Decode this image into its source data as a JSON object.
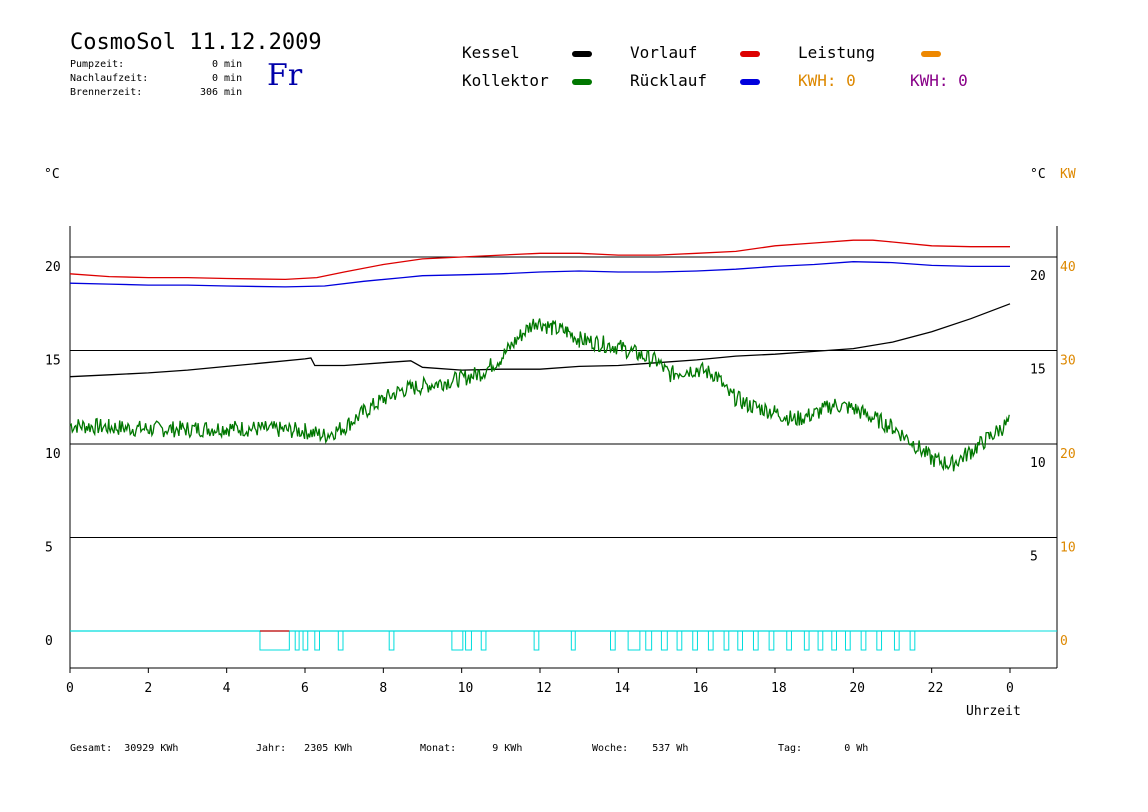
{
  "header": {
    "title": "CosmoSol 11.12.2009",
    "day": "Fr",
    "stats": [
      {
        "label": "Pumpzeit:",
        "value": "0",
        "unit": "min"
      },
      {
        "label": "Nachlaufzeit:",
        "value": "0",
        "unit": "min"
      },
      {
        "label": "Brennerzeit:",
        "value": "306",
        "unit": "min"
      }
    ]
  },
  "legend": {
    "kessel": {
      "label": "Kessel",
      "color": "#000000"
    },
    "vorlauf": {
      "label": "Vorlauf",
      "color": "#dd0000"
    },
    "leistung": {
      "label": "Leistung",
      "color": "#ee8800"
    },
    "kollektor": {
      "label": "Kollektor",
      "color": "#007700"
    },
    "ruecklauf": {
      "label": "Rücklauf",
      "color": "#0000dd"
    },
    "kwh1": {
      "label": "KWH: 0",
      "color": "#dd8800"
    },
    "kwh2": {
      "label": "KWH: 0",
      "color": "#880088"
    }
  },
  "footer": {
    "gesamt": {
      "label": "Gesamt:",
      "value": "30929 KWh"
    },
    "jahr": {
      "label": "Jahr:",
      "value": "2305 KWh"
    },
    "monat": {
      "label": "Monat:",
      "value": "9 KWh"
    },
    "woche": {
      "label": "Woche:",
      "value": "537 Wh"
    },
    "tag": {
      "label": "Tag:",
      "value": "0 Wh"
    }
  },
  "chart_data": {
    "type": "line",
    "xlabel": "Uhrzeit",
    "ylabel_left": "°C",
    "ylabel_right": "°C",
    "ylabel_right_kw": "KW",
    "x_ticks": [
      "0",
      "2",
      "4",
      "6",
      "8",
      "10",
      "12",
      "14",
      "16",
      "18",
      "20",
      "22",
      "0"
    ],
    "y_ticks_left": [
      "0",
      "5",
      "10",
      "15",
      "20"
    ],
    "y_ticks_right_c": [
      "5",
      "10",
      "15",
      "20"
    ],
    "y_ticks_right_kw": [
      "0",
      "10",
      "20",
      "30",
      "40"
    ],
    "xlim": [
      0,
      24
    ],
    "ylim": [
      -2,
      22
    ],
    "grid": "horizontal",
    "series": [
      {
        "name": "Vorlauf",
        "color": "#dd0000",
        "points": [
          [
            0,
            19.1
          ],
          [
            1,
            18.95
          ],
          [
            2,
            18.9
          ],
          [
            3,
            18.9
          ],
          [
            4,
            18.85
          ],
          [
            5.5,
            18.8
          ],
          [
            6.3,
            18.9
          ],
          [
            7,
            19.2
          ],
          [
            8,
            19.6
          ],
          [
            9,
            19.9
          ],
          [
            10,
            20.0
          ],
          [
            11,
            20.1
          ],
          [
            12,
            20.2
          ],
          [
            13,
            20.2
          ],
          [
            14,
            20.1
          ],
          [
            15,
            20.1
          ],
          [
            16,
            20.2
          ],
          [
            17,
            20.3
          ],
          [
            18,
            20.6
          ],
          [
            19,
            20.75
          ],
          [
            20,
            20.9
          ],
          [
            20.5,
            20.9
          ],
          [
            21,
            20.8
          ],
          [
            22,
            20.6
          ],
          [
            23,
            20.55
          ],
          [
            24,
            20.55
          ]
        ]
      },
      {
        "name": "Rücklauf",
        "color": "#0000dd",
        "points": [
          [
            0,
            18.6
          ],
          [
            1,
            18.55
          ],
          [
            2,
            18.5
          ],
          [
            3,
            18.5
          ],
          [
            4,
            18.45
          ],
          [
            5.5,
            18.4
          ],
          [
            6.5,
            18.45
          ],
          [
            7.5,
            18.7
          ],
          [
            8.5,
            18.9
          ],
          [
            9,
            19.0
          ],
          [
            10,
            19.05
          ],
          [
            11,
            19.1
          ],
          [
            12,
            19.2
          ],
          [
            13,
            19.25
          ],
          [
            14,
            19.2
          ],
          [
            15,
            19.2
          ],
          [
            16,
            19.25
          ],
          [
            17,
            19.35
          ],
          [
            18,
            19.5
          ],
          [
            19,
            19.6
          ],
          [
            20,
            19.75
          ],
          [
            21,
            19.7
          ],
          [
            22,
            19.55
          ],
          [
            23,
            19.5
          ],
          [
            24,
            19.5
          ]
        ]
      },
      {
        "name": "Kessel",
        "color": "#000000",
        "points": [
          [
            0,
            13.6
          ],
          [
            1,
            13.7
          ],
          [
            2,
            13.8
          ],
          [
            3,
            13.95
          ],
          [
            4,
            14.15
          ],
          [
            5,
            14.35
          ],
          [
            6,
            14.55
          ],
          [
            6.15,
            14.6
          ],
          [
            6.25,
            14.2
          ],
          [
            7,
            14.2
          ],
          [
            8,
            14.35
          ],
          [
            8.7,
            14.45
          ],
          [
            9,
            14.1
          ],
          [
            10,
            13.95
          ],
          [
            11,
            14.0
          ],
          [
            12,
            14.0
          ],
          [
            13,
            14.15
          ],
          [
            14,
            14.2
          ],
          [
            15,
            14.35
          ],
          [
            16,
            14.5
          ],
          [
            17,
            14.7
          ],
          [
            18,
            14.8
          ],
          [
            19,
            14.95
          ],
          [
            20,
            15.1
          ],
          [
            21,
            15.45
          ],
          [
            22,
            16.0
          ],
          [
            23,
            16.7
          ],
          [
            24,
            17.5
          ]
        ]
      },
      {
        "name": "Kollektor",
        "color": "#007700",
        "points": [
          [
            0,
            11.0
          ],
          [
            1,
            10.9
          ],
          [
            2,
            10.8
          ],
          [
            3,
            10.8
          ],
          [
            4,
            10.85
          ],
          [
            5,
            10.8
          ],
          [
            6,
            10.7
          ],
          [
            6.5,
            10.45
          ],
          [
            7,
            10.9
          ],
          [
            7.5,
            11.7
          ],
          [
            8,
            12.4
          ],
          [
            8.5,
            12.9
          ],
          [
            9,
            13.1
          ],
          [
            9.5,
            13.3
          ],
          [
            10,
            13.5
          ],
          [
            10.5,
            13.8
          ],
          [
            11,
            14.6
          ],
          [
            11.5,
            15.8
          ],
          [
            11.9,
            16.6
          ],
          [
            12.3,
            16.2
          ],
          [
            12.7,
            16.0
          ],
          [
            13,
            15.6
          ],
          [
            13.5,
            15.4
          ],
          [
            14,
            15.2
          ],
          [
            14.5,
            14.8
          ],
          [
            15,
            14.4
          ],
          [
            15.3,
            13.7
          ],
          [
            15.6,
            13.9
          ],
          [
            16,
            14.0
          ],
          [
            16.5,
            13.7
          ],
          [
            16.8,
            12.7
          ],
          [
            17.3,
            12.1
          ],
          [
            18,
            11.7
          ],
          [
            18.5,
            11.3
          ],
          [
            19,
            11.6
          ],
          [
            19.5,
            12.1
          ],
          [
            20,
            11.9
          ],
          [
            20.5,
            11.4
          ],
          [
            21,
            10.9
          ],
          [
            21.5,
            10.1
          ],
          [
            22,
            9.2
          ],
          [
            22.5,
            8.9
          ],
          [
            23,
            9.6
          ],
          [
            23.5,
            10.4
          ],
          [
            24,
            11.2
          ]
        ]
      }
    ],
    "leistung_line": {
      "name": "Leistung",
      "color": "#00dddd",
      "baseline": 0
    }
  }
}
